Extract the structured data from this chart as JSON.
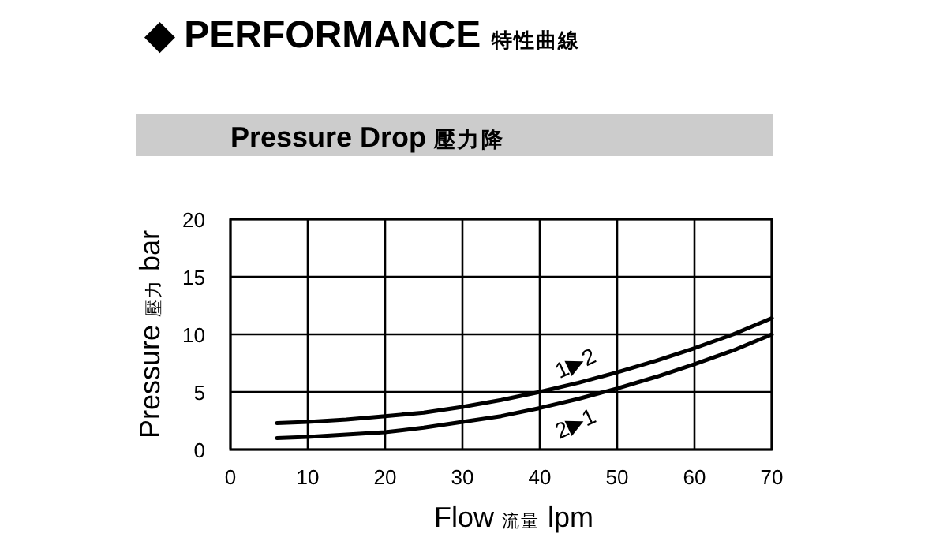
{
  "chart_data": {
    "type": "line",
    "title": "◆ PERFORMANCE 特性曲線",
    "subtitle": "Pressure Drop 壓力降",
    "xlabel": "Flow 流量 lpm",
    "ylabel": "Pressure 壓力 bar",
    "x": [
      6,
      10,
      15,
      20,
      25,
      30,
      35,
      40,
      45,
      50,
      55,
      60,
      65,
      70
    ],
    "series": [
      {
        "name": "1▶2",
        "color": "#000000",
        "values": [
          2.3,
          2.4,
          2.6,
          2.9,
          3.2,
          3.7,
          4.3,
          5.0,
          5.8,
          6.7,
          7.7,
          8.8,
          10.0,
          11.4
        ]
      },
      {
        "name": "2▶1",
        "color": "#000000",
        "values": [
          1.0,
          1.1,
          1.3,
          1.5,
          1.9,
          2.4,
          2.9,
          3.6,
          4.4,
          5.3,
          6.3,
          7.4,
          8.6,
          10.0
        ]
      }
    ],
    "xlim": [
      0,
      70
    ],
    "ylim": [
      0,
      20
    ],
    "xticks": [
      0,
      10,
      20,
      30,
      40,
      50,
      60,
      70
    ],
    "yticks": [
      0,
      5,
      10,
      15,
      20
    ],
    "grid": true
  }
}
